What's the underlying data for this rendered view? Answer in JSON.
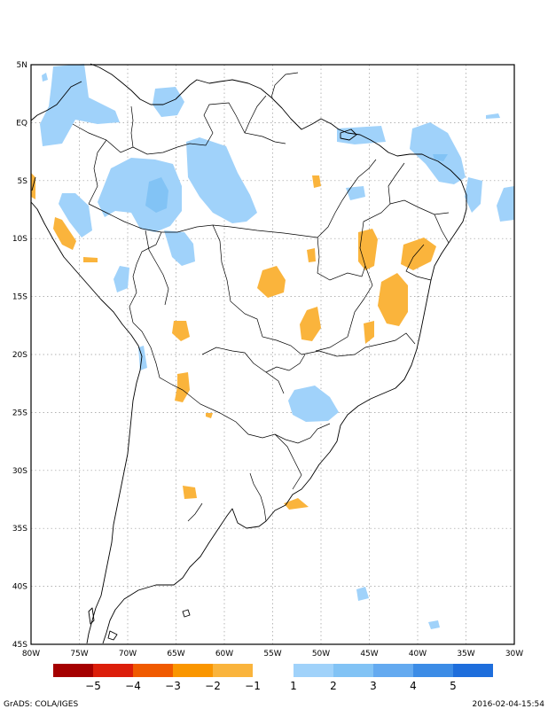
{
  "map": {
    "lat_labels": [
      "5N",
      "EQ",
      "5S",
      "10S",
      "15S",
      "20S",
      "25S",
      "30S",
      "35S",
      "40S",
      "45S"
    ],
    "lon_labels": [
      "80W",
      "75W",
      "70W",
      "65W",
      "60W",
      "55W",
      "50W",
      "45W",
      "40W",
      "35W",
      "30W"
    ],
    "extent": {
      "lon": [
        -80,
        -30
      ],
      "lat": [
        -45,
        5
      ]
    }
  },
  "colorbar": {
    "negative": [
      {
        "label": "−5",
        "color": "#a50000"
      },
      {
        "label": "−4",
        "color": "#dc1e0a"
      },
      {
        "label": "−3",
        "color": "#f05a00"
      },
      {
        "label": "−2",
        "color": "#fa9600"
      },
      {
        "label": "−1",
        "color": "#fab43c"
      }
    ],
    "positive": [
      {
        "label": "1",
        "color": "#a0d2fa"
      },
      {
        "label": "2",
        "color": "#82c3f5"
      },
      {
        "label": "3",
        "color": "#64aaf0"
      },
      {
        "label": "4",
        "color": "#3c8ce6"
      },
      {
        "label": "5",
        "color": "#1e6edc"
      }
    ]
  },
  "footer": {
    "left": "GrADS: COLA/IGES",
    "right": "2016-02-04-15:54"
  }
}
